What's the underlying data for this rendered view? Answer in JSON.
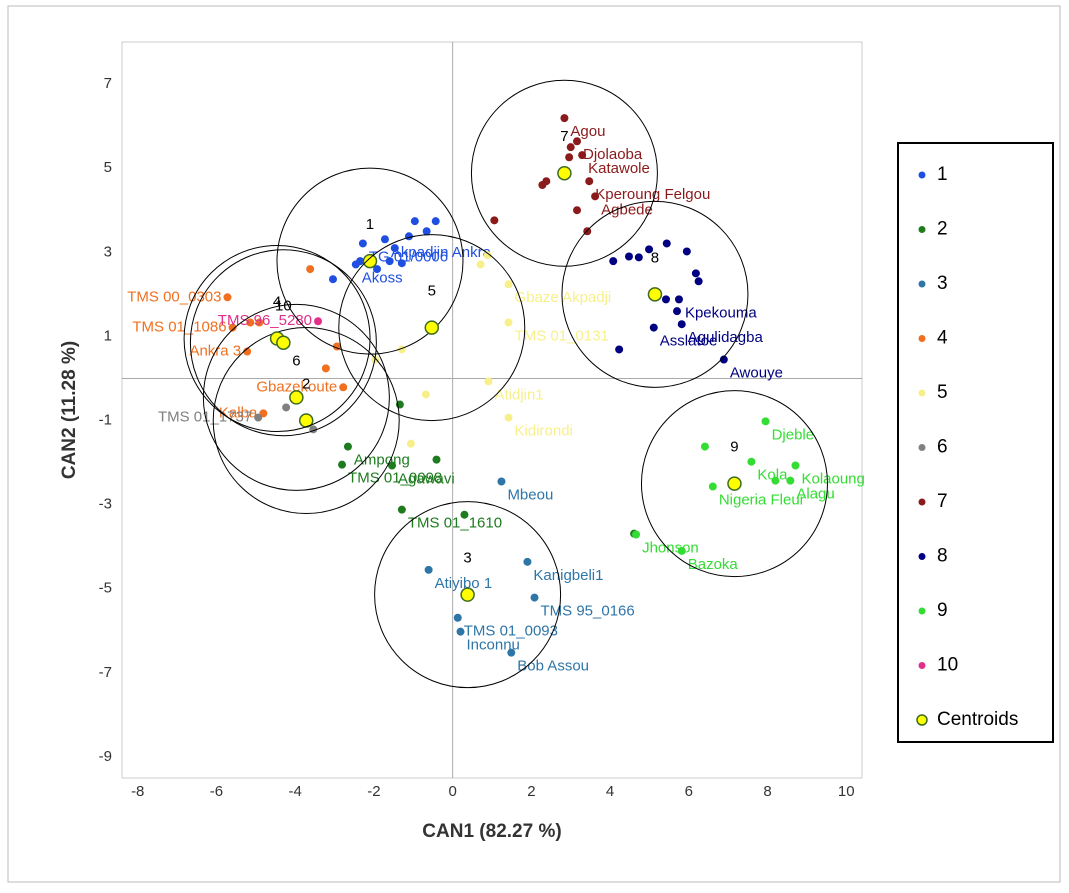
{
  "chart_data": {
    "type": "scatter",
    "xlabel": "CAN1 (82.27 %)",
    "ylabel": "CAN2 (11.28 %)",
    "xlim": [
      -8.4,
      10.4
    ],
    "ylim": [
      -9.5,
      8
    ],
    "xticks": [
      -8,
      -6,
      -4,
      -2,
      0,
      2,
      4,
      6,
      8,
      10
    ],
    "yticks": [
      -9,
      -7,
      -5,
      -3,
      -1,
      1,
      3,
      5,
      7
    ],
    "legend": "right",
    "series": [
      {
        "name": "1",
        "color": "#1f4fe0",
        "x": [
          -3.04,
          -2.46,
          -2.35,
          -1.92,
          -1.6,
          -1.29,
          -1.47,
          -1.11,
          -0.96,
          -0.66,
          -0.43,
          -1.72,
          -2.28
        ],
        "values": [
          2.36,
          2.71,
          2.79,
          2.6,
          2.79,
          2.74,
          3.1,
          3.38,
          3.74,
          3.5,
          3.74,
          3.31,
          3.21
        ],
        "labels": [
          null,
          "Akoss",
          null,
          null,
          null,
          null,
          null,
          null,
          null,
          null,
          null,
          "Akpadjin Ankra",
          "TG 01/0006"
        ]
      },
      {
        "name": "2",
        "color": "#1e7b1e",
        "x": [
          -0.41,
          0.3,
          -1.29,
          -1.34,
          -1.54,
          -2.66,
          -2.81,
          4.61
        ],
        "values": [
          -1.93,
          -3.24,
          -3.12,
          -0.62,
          -2.07,
          -1.62,
          -2.05,
          -3.69
        ],
        "labels": [
          null,
          null,
          "TMS 01_1610",
          null,
          "Agawavi",
          "Ampong",
          "TMS 01_0098",
          null
        ]
      },
      {
        "name": "3",
        "color": "#2e75a8",
        "x": [
          1.24,
          1.9,
          2.08,
          -0.61,
          0.13,
          0.2,
          1.49
        ],
        "values": [
          -2.45,
          -4.36,
          -5.21,
          -4.55,
          -5.69,
          -6.02,
          -6.52
        ],
        "labels": [
          "Mbeou",
          "Kanigbeli1",
          "TMS 95_0166",
          "Atiyibo 1",
          "TMS 01_0093",
          "Inconnu",
          "Bob Assou"
        ]
      },
      {
        "name": "4",
        "color": "#f07020",
        "x": [
          -5.72,
          -5.59,
          -5.14,
          -4.91,
          -5.22,
          -3.62,
          -2.94,
          -3.22,
          -2.78,
          -4.81
        ],
        "values": [
          1.93,
          1.21,
          1.33,
          1.33,
          0.64,
          2.6,
          0.76,
          0.24,
          -0.21,
          -0.83
        ],
        "labels": [
          "TMS 00_0303",
          "TMS 01_1086",
          null,
          null,
          "Ankra 3",
          null,
          null,
          null,
          "Gbazekoute",
          "Kalba"
        ]
      },
      {
        "name": "5",
        "color": "#f7f08a",
        "x": [
          0.71,
          0.89,
          1.42,
          1.42,
          -1.29,
          -1.97,
          0.91,
          -0.68,
          1.42,
          -1.06
        ],
        "values": [
          2.71,
          2.93,
          2.24,
          1.33,
          0.69,
          0.45,
          -0.07,
          -0.38,
          -0.93,
          -1.55
        ],
        "labels": [
          null,
          null,
          "Gbaze Akpadji",
          "TMS 01_0131",
          null,
          null,
          "Atidjin1",
          null,
          "Kidirondi",
          null
        ]
      },
      {
        "name": "6",
        "color": "#808080",
        "x": [
          -4.23,
          -4.94,
          -3.54
        ],
        "values": [
          -0.69,
          -0.93,
          -1.21
        ],
        "labels": [
          null,
          "TMS 01_1737",
          null
        ]
      },
      {
        "name": "7",
        "color": "#8b1a1a",
        "x": [
          2.84,
          3.16,
          3.0,
          3.29,
          2.96,
          2.38,
          2.28,
          3.47,
          3.62,
          3.16,
          3.42,
          1.06
        ],
        "values": [
          6.19,
          5.64,
          5.5,
          5.31,
          5.26,
          4.69,
          4.6,
          4.69,
          4.33,
          4.0,
          3.5,
          3.76
        ],
        "labels": [
          "Agou",
          "Djolaoba",
          null,
          "Katawole",
          null,
          null,
          null,
          "Kperoung Felgou",
          "Agbede",
          null,
          null,
          null
        ]
      },
      {
        "name": "8",
        "color": "#000080",
        "x": [
          4.08,
          4.48,
          4.73,
          4.99,
          5.44,
          5.95,
          6.18,
          5.75,
          5.42,
          5.7,
          5.82,
          5.11,
          4.23,
          6.89,
          6.25
        ],
        "values": [
          2.79,
          2.9,
          2.88,
          3.07,
          3.21,
          3.02,
          2.5,
          1.88,
          1.88,
          1.6,
          1.29,
          1.21,
          0.69,
          0.45,
          2.31
        ],
        "labels": [
          null,
          null,
          null,
          null,
          null,
          null,
          null,
          "Kpekouma",
          null,
          null,
          "Agulidagba",
          "Asslatoe",
          null,
          "Awouye",
          null
        ]
      },
      {
        "name": "9",
        "color": "#33dd33",
        "x": [
          7.95,
          6.41,
          7.59,
          8.71,
          6.61,
          8.2,
          8.58,
          5.82,
          4.66
        ],
        "values": [
          -1.02,
          -1.62,
          -1.98,
          -2.07,
          -2.57,
          -2.43,
          -2.43,
          -4.1,
          -3.71
        ],
        "labels": [
          "Djeble",
          null,
          "Kola",
          "Kolaoung",
          "Nigeria Fleur",
          null,
          "Alagu",
          "Bazoka",
          "Jhonson"
        ]
      },
      {
        "name": "10",
        "color": "#e0308a",
        "x": [
          -3.42
        ],
        "values": [
          1.36
        ],
        "labels": [
          "TMS 96_5280"
        ]
      },
      {
        "name": "Centroids",
        "color": "#ffff00",
        "edgecolor": "#3d6b1f",
        "x": [
          -2.1,
          -3.72,
          0.38,
          -4.46,
          -0.53,
          -3.97,
          2.84,
          5.14,
          7.16,
          -4.3
        ],
        "values": [
          2.79,
          -1.0,
          -5.14,
          0.95,
          1.21,
          -0.45,
          4.88,
          2.0,
          -2.5,
          0.85
        ],
        "labels": [
          "1",
          "2",
          "3",
          "4",
          "5",
          "6",
          "7",
          "8",
          "9",
          "10"
        ]
      }
    ]
  }
}
